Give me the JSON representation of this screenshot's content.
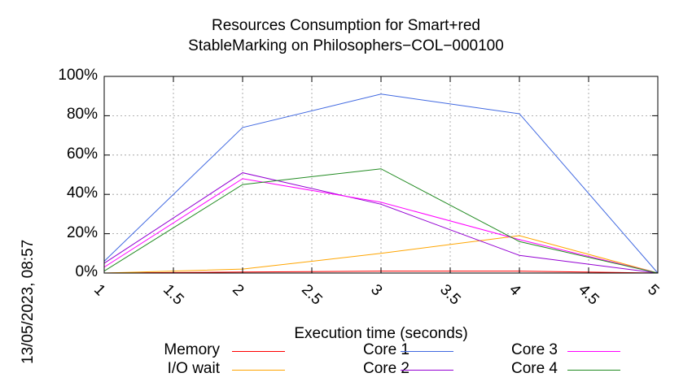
{
  "chart_data": {
    "type": "line",
    "title": [
      "Resources Consumption for Smart+red",
      "StableMarking on Philosophers−COL−000100"
    ],
    "xlabel": "Execution time (seconds)",
    "ylabel": "",
    "x": [
      1,
      2,
      3,
      4,
      5
    ],
    "xlim": [
      1,
      5
    ],
    "ylim": [
      0,
      100
    ],
    "x_ticks": [
      1,
      1.5,
      2,
      2.5,
      3,
      3.5,
      4,
      4.5,
      5
    ],
    "x_tick_labels": [
      "1",
      "1.5",
      "2",
      "2.5",
      "3",
      "3.5",
      "4",
      "4.5",
      "5"
    ],
    "y_ticks": [
      0,
      20,
      40,
      60,
      80,
      100
    ],
    "y_tick_labels": [
      "0%",
      "20%",
      "40%",
      "60%",
      "80%",
      "100%"
    ],
    "grid": true,
    "legend_position": "bottom",
    "series": [
      {
        "name": "Memory",
        "color": "#ff0000",
        "values": [
          0,
          0.5,
          1,
          1,
          0
        ]
      },
      {
        "name": "I/O wait",
        "color": "#ffa500",
        "values": [
          0,
          2,
          10,
          19,
          0
        ]
      },
      {
        "name": "Core 1",
        "color": "#4169e1",
        "values": [
          6,
          74,
          91,
          81,
          0
        ]
      },
      {
        "name": "Core 2",
        "color": "#9400d3",
        "values": [
          5,
          51,
          35,
          9,
          0
        ]
      },
      {
        "name": "Core 3",
        "color": "#ff00ff",
        "values": [
          3,
          48,
          36,
          17,
          0
        ]
      },
      {
        "name": "Core 4",
        "color": "#228b22",
        "values": [
          1,
          45,
          53,
          16,
          0
        ]
      }
    ]
  },
  "timestamp": "13/05/2023, 08:57"
}
